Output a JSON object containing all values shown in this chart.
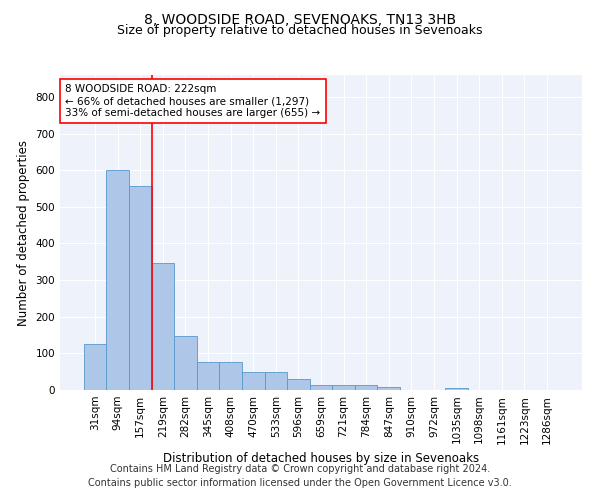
{
  "title1": "8, WOODSIDE ROAD, SEVENOAKS, TN13 3HB",
  "title2": "Size of property relative to detached houses in Sevenoaks",
  "xlabel": "Distribution of detached houses by size in Sevenoaks",
  "ylabel": "Number of detached properties",
  "categories": [
    "31sqm",
    "94sqm",
    "157sqm",
    "219sqm",
    "282sqm",
    "345sqm",
    "408sqm",
    "470sqm",
    "533sqm",
    "596sqm",
    "659sqm",
    "721sqm",
    "784sqm",
    "847sqm",
    "910sqm",
    "972sqm",
    "1035sqm",
    "1098sqm",
    "1161sqm",
    "1223sqm",
    "1286sqm"
  ],
  "values": [
    125,
    600,
    558,
    347,
    148,
    77,
    77,
    50,
    50,
    30,
    15,
    13,
    13,
    8,
    0,
    0,
    5,
    0,
    0,
    0,
    0
  ],
  "bar_color": "#aec6e8",
  "bar_edge_color": "#5599cc",
  "annotation_box_text": "8 WOODSIDE ROAD: 222sqm\n← 66% of detached houses are smaller (1,297)\n33% of semi-detached houses are larger (655) →",
  "box_color": "white",
  "box_edge_color": "red",
  "vline_color": "red",
  "vline_x_index": 3,
  "ylim": [
    0,
    860
  ],
  "yticks": [
    0,
    100,
    200,
    300,
    400,
    500,
    600,
    700,
    800
  ],
  "footer1": "Contains HM Land Registry data © Crown copyright and database right 2024.",
  "footer2": "Contains public sector information licensed under the Open Government Licence v3.0.",
  "background_color": "#eef2fa",
  "grid_color": "white",
  "title1_fontsize": 10,
  "title2_fontsize": 9,
  "axis_label_fontsize": 8.5,
  "tick_fontsize": 7.5,
  "annotation_fontsize": 7.5,
  "footer_fontsize": 7
}
